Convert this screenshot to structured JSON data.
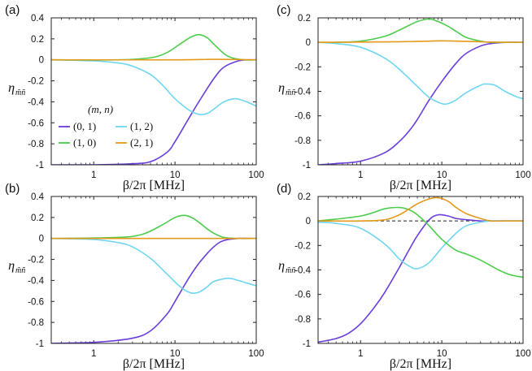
{
  "figure": {
    "xlabel": "β/2π [MHz]",
    "ylabel": "η",
    "ylabel_sub": "m̃ñ",
    "legend_title": "(m, n)"
  },
  "colors": {
    "01": "#6a3ddb",
    "12": "#6fd6f2",
    "10": "#4ccd4c",
    "21": "#e39a1c"
  },
  "legend": [
    {
      "key": "01",
      "label": "(0, 1)"
    },
    {
      "key": "12",
      "label": "(1, 2)"
    },
    {
      "key": "10",
      "label": "(1, 0)"
    },
    {
      "key": "21",
      "label": "(2, 1)"
    }
  ],
  "chart_data": [
    {
      "panel": "(a)",
      "type": "line",
      "xscale": "log",
      "xlim": [
        0.3,
        100
      ],
      "ylim": [
        -1,
        0.4
      ],
      "xticks": [
        1,
        10,
        100
      ],
      "xticklabels": [
        "1",
        "10",
        "100"
      ],
      "yticks": [
        0.4,
        0.2,
        0,
        -0.2,
        -0.4,
        -0.6,
        -0.8,
        -1
      ],
      "yticklabels": [
        "0.4",
        "0.2",
        "0",
        "-0.2",
        "-0.4",
        "-0.6",
        "-0.8",
        "-1"
      ],
      "series": [
        {
          "key": "01",
          "x": [
            0.3,
            1,
            3,
            5,
            8,
            10,
            15,
            20,
            30,
            40,
            60,
            80,
            100
          ],
          "y": [
            -1,
            -1,
            -0.99,
            -0.97,
            -0.88,
            -0.78,
            -0.55,
            -0.39,
            -0.18,
            -0.07,
            -0.01,
            0,
            0
          ]
        },
        {
          "key": "12",
          "x": [
            0.3,
            1,
            2,
            3,
            5,
            7,
            10,
            15,
            20,
            25,
            30,
            40,
            55,
            70,
            100
          ],
          "y": [
            0,
            -0.01,
            -0.03,
            -0.06,
            -0.14,
            -0.24,
            -0.37,
            -0.48,
            -0.52,
            -0.51,
            -0.47,
            -0.4,
            -0.37,
            -0.39,
            -0.44
          ]
        },
        {
          "key": "10",
          "x": [
            0.3,
            2,
            5,
            8,
            12,
            16,
            20,
            25,
            30,
            40,
            50,
            70,
            100
          ],
          "y": [
            0,
            0,
            0.02,
            0.07,
            0.16,
            0.22,
            0.24,
            0.21,
            0.15,
            0.06,
            0.02,
            0,
            0
          ]
        },
        {
          "key": "21",
          "x": [
            0.3,
            10,
            30,
            100
          ],
          "y": [
            0,
            0,
            0.005,
            0
          ]
        }
      ]
    },
    {
      "panel": "(c)",
      "type": "line",
      "xscale": "log",
      "xlim": [
        0.3,
        100
      ],
      "ylim": [
        -1,
        0.2
      ],
      "xticks": [
        1,
        10,
        100
      ],
      "xticklabels": [
        "1",
        "10",
        "100"
      ],
      "yticks": [
        0.2,
        0,
        -0.2,
        -0.4,
        -0.6,
        -0.8,
        -1
      ],
      "yticklabels": [
        "0.2",
        "0",
        "-0.2",
        "-0.4",
        "-0.6",
        "-0.8",
        "-1"
      ],
      "series": [
        {
          "key": "01",
          "x": [
            0.3,
            0.5,
            1,
            2,
            3,
            4,
            5,
            7,
            10,
            15,
            20,
            30,
            40,
            60,
            100
          ],
          "y": [
            -1,
            -0.99,
            -0.97,
            -0.9,
            -0.81,
            -0.72,
            -0.63,
            -0.47,
            -0.32,
            -0.17,
            -0.09,
            -0.03,
            -0.01,
            0,
            0
          ]
        },
        {
          "key": "12",
          "x": [
            0.3,
            0.5,
            1,
            2,
            3,
            5,
            7,
            10,
            12,
            15,
            20,
            30,
            35,
            45,
            60,
            80,
            100
          ],
          "y": [
            0,
            -0.01,
            -0.04,
            -0.13,
            -0.22,
            -0.36,
            -0.45,
            -0.5,
            -0.5,
            -0.47,
            -0.41,
            -0.35,
            -0.34,
            -0.35,
            -0.4,
            -0.44,
            -0.46
          ]
        },
        {
          "key": "10",
          "x": [
            0.3,
            0.5,
            1,
            2,
            3,
            5,
            7,
            9,
            12,
            15,
            20,
            30,
            40,
            60,
            100
          ],
          "y": [
            0,
            0,
            0.01,
            0.05,
            0.1,
            0.17,
            0.19,
            0.17,
            0.13,
            0.09,
            0.04,
            0.01,
            0,
            0,
            0
          ]
        },
        {
          "key": "21",
          "x": [
            0.3,
            3,
            7,
            10,
            20,
            40,
            100
          ],
          "y": [
            0,
            0.005,
            0.01,
            0.012,
            0.008,
            0.002,
            0
          ]
        }
      ]
    },
    {
      "panel": "(b)",
      "type": "line",
      "xscale": "log",
      "xlim": [
        0.3,
        100
      ],
      "ylim": [
        -1,
        0.4
      ],
      "xticks": [
        1,
        10,
        100
      ],
      "xticklabels": [
        "1",
        "10",
        "100"
      ],
      "yticks": [
        0.4,
        0.2,
        0,
        -0.2,
        -0.4,
        -0.6,
        -0.8,
        -1
      ],
      "yticklabels": [
        "0.4",
        "0.2",
        "0",
        "-0.2",
        "-0.4",
        "-0.6",
        "-0.8",
        "-1"
      ],
      "series": [
        {
          "key": "01",
          "x": [
            0.3,
            1,
            3,
            5,
            8,
            10,
            15,
            20,
            30,
            40,
            60,
            100
          ],
          "y": [
            -1,
            -0.99,
            -0.95,
            -0.88,
            -0.72,
            -0.6,
            -0.37,
            -0.23,
            -0.08,
            -0.02,
            0,
            0
          ]
        },
        {
          "key": "12",
          "x": [
            0.3,
            1,
            2,
            3,
            5,
            8,
            12,
            16,
            20,
            25,
            30,
            45,
            60,
            80,
            100
          ],
          "y": [
            0,
            -0.01,
            -0.04,
            -0.08,
            -0.19,
            -0.34,
            -0.47,
            -0.52,
            -0.51,
            -0.46,
            -0.41,
            -0.38,
            -0.4,
            -0.43,
            -0.45
          ]
        },
        {
          "key": "10",
          "x": [
            0.3,
            2,
            4,
            7,
            10,
            13,
            16,
            20,
            25,
            30,
            40,
            60,
            100
          ],
          "y": [
            0,
            0.01,
            0.04,
            0.13,
            0.2,
            0.22,
            0.2,
            0.15,
            0.09,
            0.05,
            0.01,
            0,
            0
          ]
        },
        {
          "key": "21",
          "x": [
            0.3,
            100
          ],
          "y": [
            0,
            0
          ]
        }
      ]
    },
    {
      "panel": "(d)",
      "type": "line",
      "xscale": "log",
      "xlim": [
        0.3,
        100
      ],
      "ylim": [
        -1,
        0.2
      ],
      "xticks": [
        1,
        10,
        100
      ],
      "xticklabels": [
        "1",
        "10",
        "100"
      ],
      "yticks": [
        0.2,
        0,
        -0.2,
        -0.4,
        -0.6,
        -0.8,
        -1
      ],
      "yticklabels": [
        "0.2",
        "0",
        "-0.2",
        "-0.4",
        "-0.6",
        "-0.8",
        "-1"
      ],
      "dashed_zero_line": true,
      "series": [
        {
          "key": "01",
          "x": [
            0.3,
            0.5,
            0.7,
            1,
            1.5,
            2,
            3,
            4,
            5,
            7,
            9,
            12,
            15,
            20,
            30,
            40,
            60,
            100
          ],
          "y": [
            -0.99,
            -0.96,
            -0.92,
            -0.84,
            -0.7,
            -0.58,
            -0.38,
            -0.23,
            -0.12,
            0.01,
            0.05,
            0.04,
            0.02,
            0.01,
            0,
            0,
            0,
            0
          ]
        },
        {
          "key": "12",
          "x": [
            0.3,
            0.5,
            1,
            2,
            3,
            4,
            5,
            7,
            10,
            15,
            20,
            30,
            40,
            60,
            100
          ],
          "y": [
            -0.01,
            -0.02,
            -0.06,
            -0.19,
            -0.31,
            -0.37,
            -0.39,
            -0.34,
            -0.22,
            -0.1,
            -0.04,
            -0.01,
            0,
            0,
            0
          ]
        },
        {
          "key": "10",
          "x": [
            0.3,
            1,
            2,
            3,
            4,
            5,
            7,
            10,
            15,
            20,
            30,
            50,
            70,
            100
          ],
          "y": [
            0,
            0.04,
            0.1,
            0.11,
            0.09,
            0.05,
            -0.04,
            -0.15,
            -0.24,
            -0.27,
            -0.32,
            -0.4,
            -0.44,
            -0.46
          ]
        },
        {
          "key": "21",
          "x": [
            0.3,
            1,
            2,
            3,
            4,
            5,
            7,
            9,
            12,
            15,
            20,
            30,
            40,
            60,
            100
          ],
          "y": [
            0,
            0,
            0.01,
            0.05,
            0.1,
            0.14,
            0.18,
            0.19,
            0.16,
            0.11,
            0.06,
            0.02,
            0,
            0,
            0
          ]
        }
      ]
    }
  ]
}
